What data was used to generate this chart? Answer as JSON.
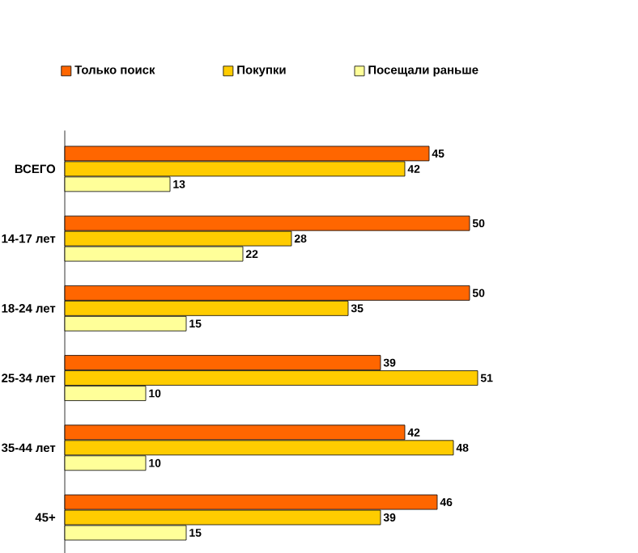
{
  "chart_data": {
    "type": "bar",
    "orientation": "horizontal",
    "categories": [
      "ВСЕГО",
      "14-17 лет",
      "18-24 лет",
      "25-34 лет",
      "35-44 лет",
      "45+"
    ],
    "series": [
      {
        "name": "Только поиск",
        "color": "#ff6600",
        "values": [
          45,
          50,
          50,
          39,
          42,
          46
        ]
      },
      {
        "name": "Покупки",
        "color": "#ffcc00",
        "values": [
          42,
          28,
          35,
          51,
          48,
          39
        ]
      },
      {
        "name": "Посещали раньше",
        "color": "#ffff99",
        "values": [
          13,
          22,
          15,
          10,
          10,
          15
        ]
      }
    ],
    "data_labels": true,
    "legend": "top",
    "tick_labels": "y"
  }
}
